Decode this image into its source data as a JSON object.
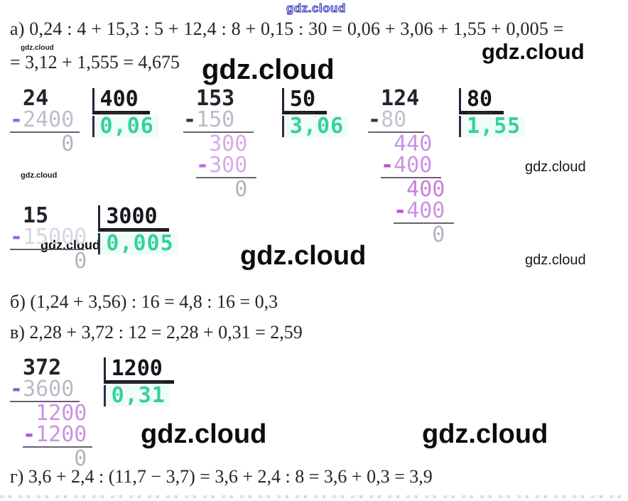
{
  "watermark": {
    "text": "gdz.cloud"
  },
  "lines": {
    "a1": "а) 0,24 : 4 + 15,3 : 5 + 12,4 : 8 + 0,15 : 30 = 0,06 + 3,06 + 1,55 + 0,005 =",
    "a2": "= 3,12 + 1,555 = 4,675",
    "b": "б) (1,24 + 3,56) : 16 = 4,8 : 16 = 0,3",
    "v": "в) 2,28 + 3,72 : 12 = 2,28 + 0,31 = 2,59",
    "g": "г) 3,6 + 2,4 : (11,7 − 3,7) = 3,6 + 2,4 : 8 = 3,6 + 0,3 = 3,9"
  },
  "colors": {
    "quotient_green": "#34d29a",
    "dark_ink": "#23232e"
  },
  "divisions": [
    {
      "divisor": "400",
      "quotient": "0,06",
      "rows": [
        {
          "type": "text",
          "segments": [
            {
              "text": " 24",
              "color": "#23232e",
              "bold": true
            }
          ]
        },
        {
          "type": "text",
          "segments": [
            {
              "text": "-",
              "color": "#a35fd8",
              "bold": true
            },
            {
              "text": "2400",
              "color": "#c2bccc"
            }
          ]
        },
        {
          "type": "rule",
          "indent": 0,
          "width": 5.4
        },
        {
          "type": "text",
          "segments": [
            {
              "text": "    0",
              "color": "#b6b2c0"
            }
          ]
        }
      ]
    },
    {
      "divisor": "50",
      "quotient": "3,06",
      "rows": [
        {
          "type": "text",
          "segments": [
            {
              "text": " 153",
              "color": "#23232e",
              "bold": true
            }
          ]
        },
        {
          "type": "text",
          "segments": [
            {
              "text": "-",
              "color": "#35353f",
              "bold": true
            },
            {
              "text": "150",
              "color": "#bdb9c6"
            }
          ]
        },
        {
          "type": "rule",
          "indent": 0,
          "width": 5.5
        },
        {
          "type": "text",
          "segments": [
            {
              "text": "  300",
              "color": "#d8abe6"
            }
          ]
        },
        {
          "type": "text",
          "segments": [
            {
              "text": " -",
              "color": "#c468dc",
              "bold": true
            },
            {
              "text": "300",
              "color": "#d8abe6"
            }
          ]
        },
        {
          "type": "rule",
          "indent": 1,
          "width": 4.7
        },
        {
          "type": "text",
          "segments": [
            {
              "text": "    0",
              "color": "#b6b2c0"
            }
          ]
        }
      ]
    },
    {
      "divisor": "80",
      "quotient": "1,55",
      "rows": [
        {
          "type": "text",
          "segments": [
            {
              "text": " 124",
              "color": "#23232e",
              "bold": true
            }
          ]
        },
        {
          "type": "text",
          "segments": [
            {
              "text": "-",
              "color": "#35353f",
              "bold": true
            },
            {
              "text": "80",
              "color": "#c6c2cf"
            }
          ]
        },
        {
          "type": "rule",
          "indent": 0,
          "width": 4.4
        },
        {
          "type": "text",
          "segments": [
            {
              "text": "  440",
              "color": "#cb93e2"
            }
          ]
        },
        {
          "type": "text",
          "segments": [
            {
              "text": " -",
              "color": "#b353d6",
              "bold": true
            },
            {
              "text": "400",
              "color": "#cb93e2"
            }
          ]
        },
        {
          "type": "rule",
          "indent": 1,
          "width": 4.7
        },
        {
          "type": "text",
          "segments": [
            {
              "text": "   400",
              "color": "#c77fdb"
            }
          ]
        },
        {
          "type": "text",
          "segments": [
            {
              "text": "  -",
              "color": "#b353d6",
              "bold": true
            },
            {
              "text": "400",
              "color": "#cb93e2"
            }
          ]
        },
        {
          "type": "rule",
          "indent": 2,
          "width": 4.7
        },
        {
          "type": "text",
          "segments": [
            {
              "text": "     0",
              "color": "#b6b2c0"
            }
          ]
        }
      ]
    },
    {
      "divisor": "3000",
      "quotient": "0,005",
      "rows": [
        {
          "type": "text",
          "segments": [
            {
              "text": " 15",
              "color": "#23232e",
              "bold": true
            }
          ]
        },
        {
          "type": "text",
          "segments": [
            {
              "text": "-",
              "color": "#a35fd8",
              "bold": true
            },
            {
              "text": "15000",
              "color": "#d8d5e0"
            }
          ]
        },
        {
          "type": "rule",
          "indent": 0,
          "width": 5.8
        },
        {
          "type": "text",
          "segments": [
            {
              "text": "     0",
              "color": "#b6b2c0"
            }
          ]
        }
      ]
    },
    {
      "divisor": "1200",
      "quotient": "0,31",
      "rows": [
        {
          "type": "text",
          "segments": [
            {
              "text": " 372",
              "color": "#23232e",
              "bold": true
            }
          ]
        },
        {
          "type": "text",
          "segments": [
            {
              "text": "-",
              "color": "#9a55cc",
              "bold": true
            },
            {
              "text": "3600",
              "color": "#bdb9c6"
            }
          ]
        },
        {
          "type": "rule",
          "indent": 0,
          "width": 5.4
        },
        {
          "type": "text",
          "segments": [
            {
              "text": "  1200",
              "color": "#cb93e2"
            }
          ]
        },
        {
          "type": "text",
          "segments": [
            {
              "text": " -",
              "color": "#b353d6",
              "bold": true
            },
            {
              "text": "1200",
              "color": "#cb93e2"
            }
          ]
        },
        {
          "type": "rule",
          "indent": 1,
          "width": 5.4
        },
        {
          "type": "text",
          "segments": [
            {
              "text": "     0",
              "color": "#b6b2c0"
            }
          ]
        }
      ]
    }
  ]
}
